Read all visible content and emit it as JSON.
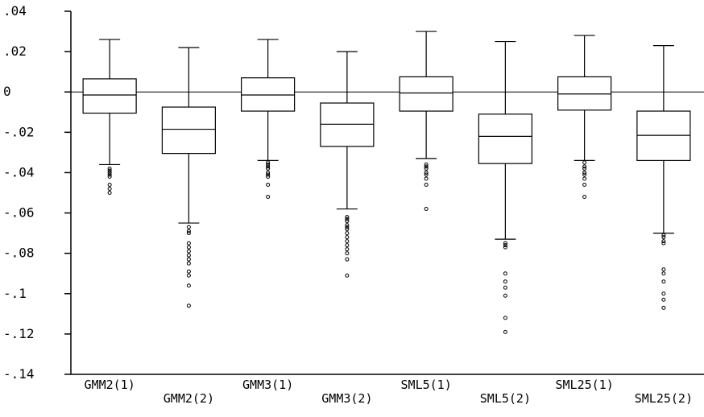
{
  "chart_data": {
    "type": "box",
    "ylim": [
      -0.14,
      0.04
    ],
    "y_ticks": [
      0.04,
      0.02,
      0,
      -0.02,
      -0.04,
      -0.06,
      -0.08,
      -0.1,
      -0.12,
      -0.14
    ],
    "y_tick_labels": [
      ".04",
      ".02",
      "0",
      "-.02",
      "-.04",
      "-.06",
      "-.08",
      "-.1",
      "-.12",
      "-.14"
    ],
    "reference_line": 0,
    "categories": [
      "GMM2(1)",
      "GMM2(2)",
      "GMM3(1)",
      "GMM3(2)",
      "SML5(1)",
      "SML5(2)",
      "SML25(1)",
      "SML25(2)"
    ],
    "boxes": [
      {
        "label": "GMM2(1)",
        "whisker_low": -0.036,
        "q1": -0.0105,
        "median": -0.0015,
        "q3": 0.0065,
        "whisker_high": 0.026,
        "outliers": [
          -0.038,
          -0.039,
          -0.04,
          -0.041,
          -0.042,
          -0.046,
          -0.048,
          -0.05
        ]
      },
      {
        "label": "GMM2(2)",
        "whisker_low": -0.065,
        "q1": -0.0305,
        "median": -0.0185,
        "q3": -0.0075,
        "whisker_high": 0.022,
        "outliers": [
          -0.067,
          -0.069,
          -0.07,
          -0.075,
          -0.077,
          -0.079,
          -0.081,
          -0.083,
          -0.085,
          -0.089,
          -0.091,
          -0.096,
          -0.106
        ]
      },
      {
        "label": "GMM3(1)",
        "whisker_low": -0.034,
        "q1": -0.0095,
        "median": -0.0015,
        "q3": 0.007,
        "whisker_high": 0.026,
        "outliers": [
          -0.035,
          -0.036,
          -0.037,
          -0.038,
          -0.04,
          -0.041,
          -0.042,
          -0.046,
          -0.052
        ]
      },
      {
        "label": "GMM3(2)",
        "whisker_low": -0.058,
        "q1": -0.027,
        "median": -0.016,
        "q3": -0.0055,
        "whisker_high": 0.02,
        "outliers": [
          -0.062,
          -0.063,
          -0.064,
          -0.066,
          -0.067,
          -0.068,
          -0.07,
          -0.072,
          -0.074,
          -0.076,
          -0.078,
          -0.08,
          -0.083,
          -0.091
        ]
      },
      {
        "label": "SML5(1)",
        "whisker_low": -0.033,
        "q1": -0.0095,
        "median": -0.0005,
        "q3": 0.0075,
        "whisker_high": 0.03,
        "outliers": [
          -0.036,
          -0.037,
          -0.038,
          -0.04,
          -0.041,
          -0.043,
          -0.046,
          -0.058
        ]
      },
      {
        "label": "SML5(2)",
        "whisker_low": -0.073,
        "q1": -0.0355,
        "median": -0.022,
        "q3": -0.011,
        "whisker_high": 0.025,
        "outliers": [
          -0.075,
          -0.076,
          -0.077,
          -0.09,
          -0.094,
          -0.097,
          -0.101,
          -0.112,
          -0.119
        ]
      },
      {
        "label": "SML25(1)",
        "whisker_low": -0.034,
        "q1": -0.009,
        "median": -0.001,
        "q3": 0.0075,
        "whisker_high": 0.028,
        "outliers": [
          -0.035,
          -0.037,
          -0.038,
          -0.04,
          -0.041,
          -0.043,
          -0.046,
          -0.052
        ]
      },
      {
        "label": "SML25(2)",
        "whisker_low": -0.07,
        "q1": -0.034,
        "median": -0.0215,
        "q3": -0.0095,
        "whisker_high": 0.023,
        "outliers": [
          -0.071,
          -0.072,
          -0.074,
          -0.075,
          -0.088,
          -0.09,
          -0.094,
          -0.1,
          -0.103,
          -0.107
        ]
      }
    ]
  }
}
